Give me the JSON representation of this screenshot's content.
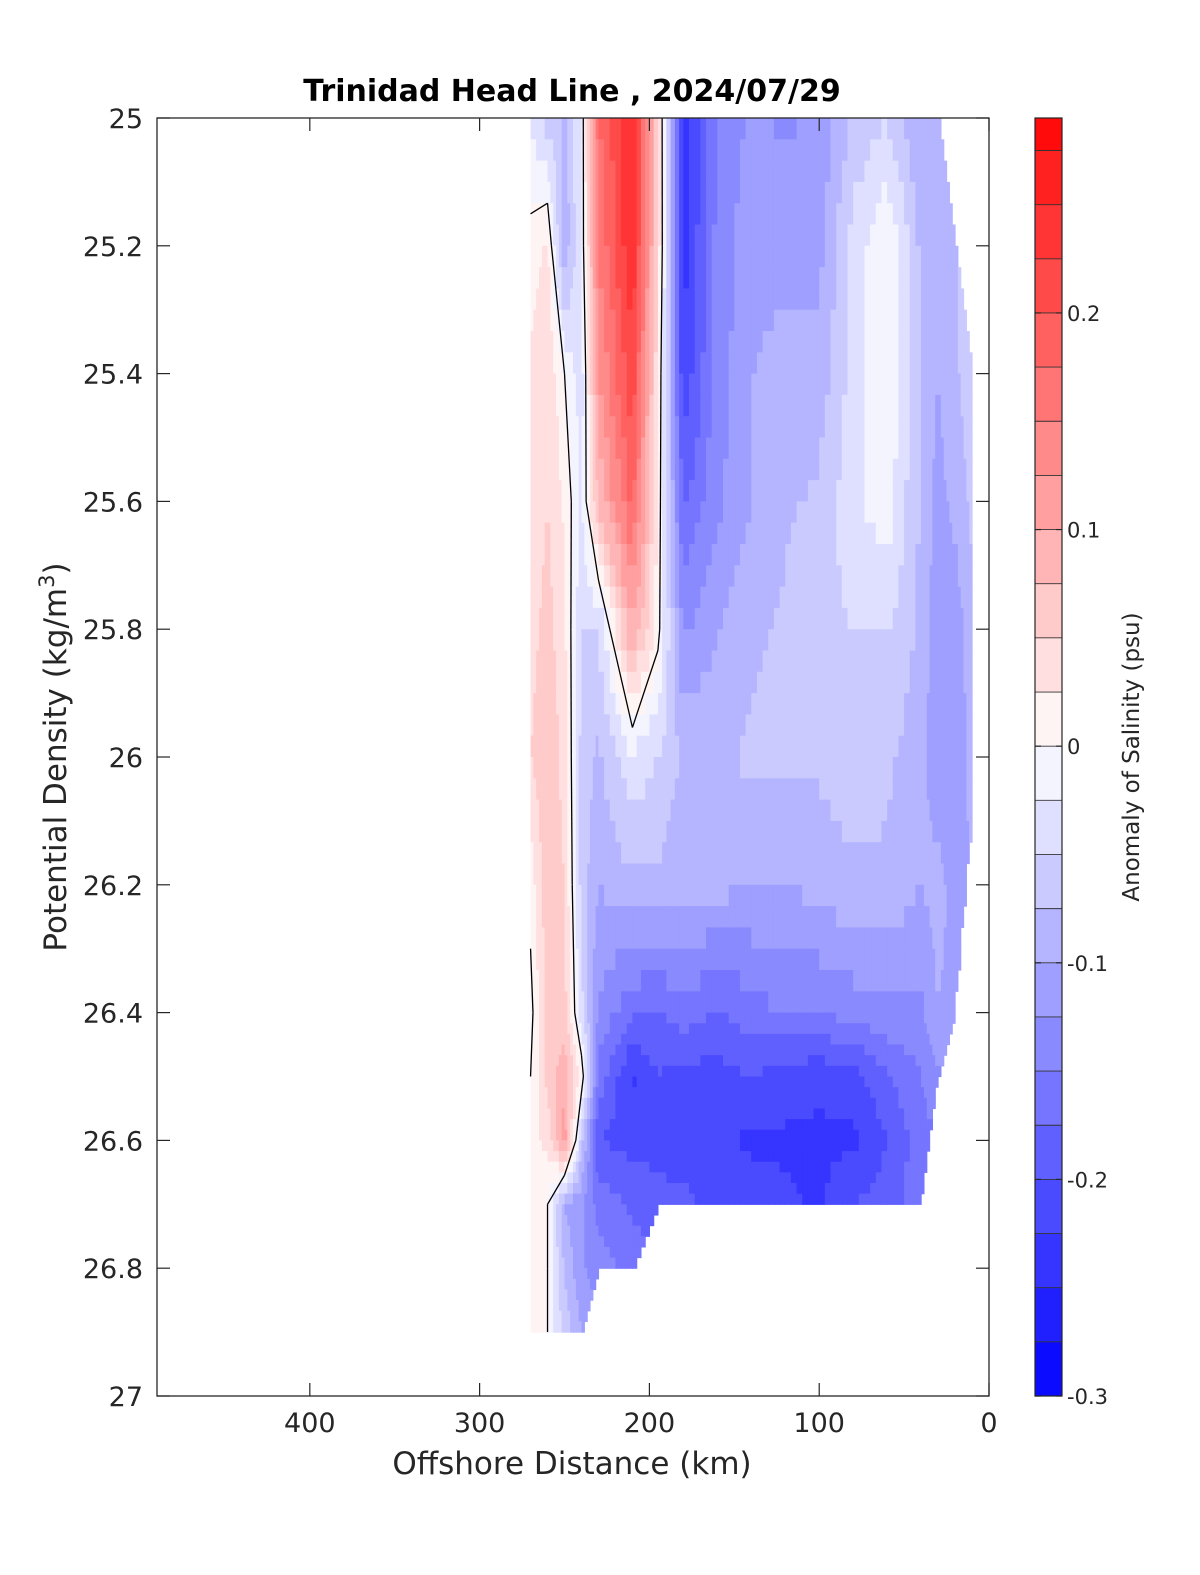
{
  "chart_data": {
    "type": "heatmap",
    "subtype": "filled-contour section",
    "title": "Trinidad Head Line , 2024/07/29",
    "xlabel": "Offshore Distance (km)",
    "ylabel_main": "Potential Density (kg/m",
    "ylabel_sup": "3",
    "ylabel_close": ")",
    "colorbar_label": "Anomaly of Salinity (psu)",
    "x_reversed": true,
    "xlim": [
      490,
      0
    ],
    "ylim": [
      25,
      27
    ],
    "y_reversed": true,
    "x_ticks": [
      400,
      300,
      200,
      100,
      0
    ],
    "x_tick_labels": [
      "400",
      "300",
      "200",
      "100",
      "0"
    ],
    "y_ticks": [
      25,
      25.2,
      25.4,
      25.6,
      25.8,
      26,
      26.2,
      26.4,
      26.6,
      26.8,
      27
    ],
    "y_tick_labels": [
      "25",
      "25.2",
      "25.4",
      "25.6",
      "25.8",
      "26",
      "26.2",
      "26.4",
      "26.6",
      "26.8",
      "27"
    ],
    "colorbar_range": [
      -0.3,
      0.29
    ],
    "colorbar_step": 0.025,
    "colorbar_ticks": [
      0.2,
      0.1,
      0,
      -0.1,
      -0.2,
      -0.3
    ],
    "colorbar_tick_labels": [
      "0.2",
      "0.1",
      "0",
      "-0.1",
      "-0.2",
      "-0.3"
    ],
    "colormap": {
      "negative": "#0000ff",
      "zero": "#ffffff",
      "positive": "#ff0000"
    },
    "zero_contour_color": "#000000",
    "stations_km": [
      270,
      260,
      250,
      240,
      230,
      210,
      195,
      180,
      160,
      140,
      120,
      100,
      80,
      60,
      40,
      30,
      20,
      10
    ],
    "density_levels": [
      25.0,
      25.2,
      25.4,
      25.6,
      25.8,
      26.0,
      26.2,
      26.4,
      26.5,
      26.6,
      26.7,
      26.8,
      26.9
    ],
    "bottom_density_limit": [
      26.9,
      26.9,
      26.9,
      26.9,
      26.8,
      26.8,
      26.7,
      26.7,
      26.7,
      26.7,
      26.7,
      26.7,
      26.7,
      26.7,
      26.7,
      26.5,
      26.4,
      26.1
    ],
    "top_density_limit": [
      25.0,
      25.0,
      25.0,
      25.0,
      25.0,
      25.0,
      25.0,
      25.0,
      25.0,
      25.0,
      25.0,
      25.0,
      25.0,
      25.0,
      25.0,
      25.0,
      25.2,
      25.4
    ],
    "salinity_anomaly": [
      [
        -0.03,
        -0.06,
        -0.08,
        -0.02,
        0.17,
        0.25,
        0.05,
        -0.25,
        -0.15,
        -0.12,
        -0.13,
        -0.12,
        -0.07,
        -0.05,
        -0.1,
        -0.08,
        -0.08,
        -0.06
      ],
      [
        0.01,
        0.03,
        -0.1,
        -0.02,
        0.15,
        0.25,
        0.05,
        -0.24,
        -0.14,
        -0.11,
        -0.11,
        -0.11,
        -0.04,
        0.0,
        -0.08,
        -0.1,
        -0.08,
        -0.06
      ],
      [
        0.03,
        0.05,
        0.0,
        -0.04,
        0.12,
        0.22,
        0.03,
        -0.22,
        -0.14,
        -0.1,
        -0.09,
        -0.09,
        -0.04,
        0.0,
        -0.08,
        -0.1,
        -0.08,
        -0.06
      ],
      [
        0.03,
        0.05,
        0.02,
        -0.03,
        0.08,
        0.18,
        0.02,
        -0.18,
        -0.13,
        -0.1,
        -0.08,
        -0.07,
        -0.03,
        -0.01,
        -0.08,
        -0.11,
        -0.09,
        -0.07
      ],
      [
        0.04,
        0.06,
        0.03,
        -0.05,
        -0.05,
        0.1,
        0.01,
        -0.13,
        -0.1,
        -0.08,
        -0.07,
        -0.06,
        -0.05,
        -0.05,
        -0.08,
        -0.12,
        -0.12,
        -0.08
      ],
      [
        0.05,
        0.07,
        0.04,
        -0.06,
        -0.08,
        -0.03,
        -0.05,
        -0.08,
        -0.08,
        -0.07,
        -0.07,
        -0.07,
        -0.06,
        -0.07,
        -0.09,
        -0.12,
        -0.12,
        -0.09
      ],
      [
        0.01,
        0.07,
        0.05,
        -0.06,
        -0.1,
        -0.08,
        -0.08,
        -0.09,
        -0.09,
        -0.1,
        -0.1,
        -0.09,
        -0.08,
        -0.08,
        -0.1,
        -0.09,
        -0.11,
        -0.1
      ],
      [
        -0.01,
        0.06,
        0.06,
        -0.04,
        -0.13,
        -0.17,
        -0.18,
        -0.16,
        -0.18,
        -0.16,
        -0.15,
        -0.15,
        -0.14,
        -0.13,
        -0.13,
        -0.1,
        -0.11,
        -0.1
      ],
      [
        0.0,
        0.06,
        0.09,
        0.02,
        -0.16,
        -0.23,
        -0.2,
        -0.21,
        -0.21,
        -0.2,
        -0.21,
        -0.22,
        -0.21,
        -0.18,
        -0.15,
        -0.13,
        -0.12,
        -0.11
      ],
      [
        0.02,
        0.03,
        0.12,
        -0.06,
        -0.2,
        -0.21,
        -0.21,
        -0.22,
        -0.22,
        -0.23,
        -0.23,
        -0.23,
        -0.23,
        -0.2,
        -0.16,
        -0.15,
        -0.13,
        -0.12
      ],
      [
        0.02,
        0.0,
        -0.1,
        -0.12,
        -0.16,
        -0.18,
        -0.19,
        -0.19,
        -0.21,
        -0.21,
        -0.22,
        -0.23,
        -0.2,
        -0.19,
        -0.16,
        -0.15,
        -0.13,
        -0.12
      ],
      [
        0.02,
        0.0,
        -0.08,
        -0.12,
        -0.14,
        -0.16,
        -0.17,
        -0.18,
        -0.19,
        -0.19,
        -0.2,
        -0.2,
        -0.18,
        -0.17,
        -0.15,
        -0.14,
        -0.13,
        -0.12
      ],
      [
        0.02,
        0.0,
        -0.06,
        -0.1,
        -0.12,
        -0.14,
        -0.15,
        -0.16,
        -0.17,
        -0.17,
        -0.18,
        -0.18,
        -0.17,
        -0.16,
        -0.14,
        -0.14,
        -0.13,
        -0.12
      ]
    ]
  }
}
